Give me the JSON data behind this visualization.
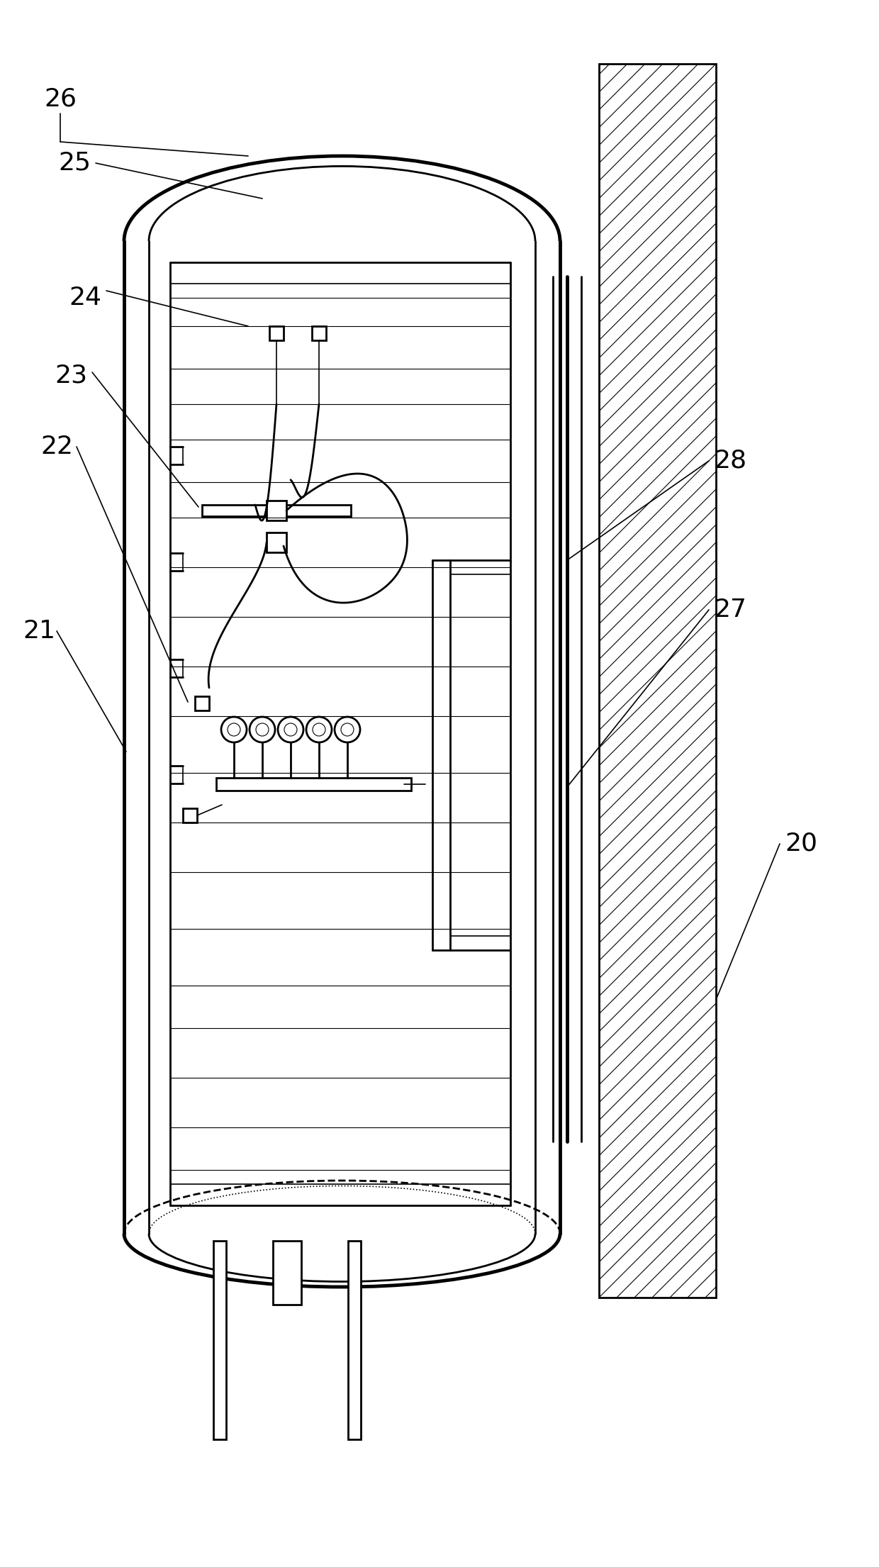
{
  "background": "#ffffff",
  "line_color": "#000000",
  "lw_thick": 3.5,
  "lw_medium": 2.0,
  "lw_thin": 1.2,
  "lw_hair": 0.8
}
